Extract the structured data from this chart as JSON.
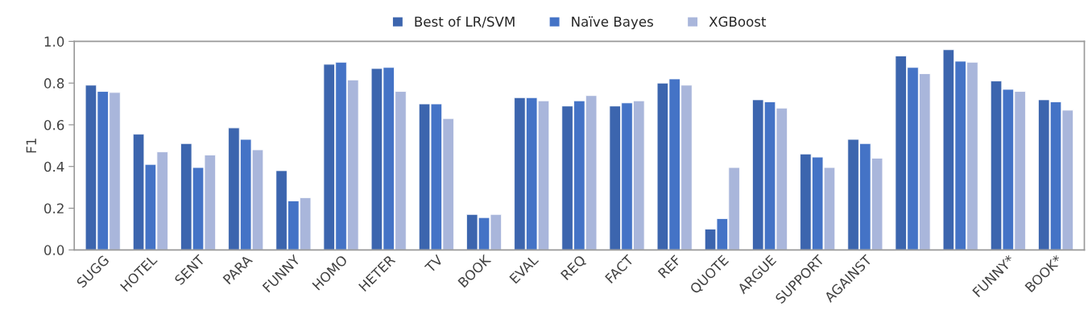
{
  "chart_data": {
    "type": "bar",
    "ylabel": "F1",
    "categories": [
      "SUGG",
      "HOTEL",
      "SENT",
      "PARA",
      "FUNNY",
      "HOMO",
      "HETER",
      "TV",
      "BOOK",
      "EVAL",
      "REQ",
      "FACT",
      "REF",
      "QUOTE",
      "ARGUE",
      "SUPPORT",
      "AGAINST",
      null,
      null,
      "FUNNY*",
      "BOOK*"
    ],
    "series": [
      {
        "name": "Best of LR/SVM",
        "color": "#3c65ae",
        "values": [
          0.79,
          0.555,
          0.51,
          0.585,
          0.38,
          0.89,
          0.87,
          0.7,
          0.17,
          0.73,
          0.69,
          0.69,
          0.8,
          0.1,
          0.72,
          0.46,
          0.53,
          0.93,
          0.96,
          0.81,
          0.72
        ]
      },
      {
        "name": "Naïve Bayes",
        "color": "#4473c6",
        "values": [
          0.76,
          0.41,
          0.395,
          0.53,
          0.235,
          0.9,
          0.875,
          0.7,
          0.155,
          0.73,
          0.715,
          0.705,
          0.82,
          0.15,
          0.71,
          0.445,
          0.51,
          0.875,
          0.905,
          0.77,
          0.71
        ]
      },
      {
        "name": "XGBoost",
        "color": "#a9b6db",
        "values": [
          0.755,
          0.47,
          0.455,
          0.48,
          0.25,
          0.815,
          0.76,
          0.63,
          0.17,
          0.715,
          0.74,
          0.715,
          0.79,
          0.395,
          0.68,
          0.395,
          0.44,
          0.845,
          0.9,
          0.76,
          0.67
        ]
      }
    ],
    "ylim": [
      0,
      1.0
    ],
    "yticks": [
      {
        "value": 0,
        "label": "0.0"
      },
      {
        "value": 0.2,
        "label": "0.2"
      },
      {
        "value": 0.4,
        "label": "0.4"
      },
      {
        "value": 0.6,
        "label": "0.6"
      },
      {
        "value": 0.8,
        "label": "0.8"
      },
      {
        "value": 1.0,
        "label": "1.0"
      }
    ],
    "grid": false,
    "legend": "top"
  }
}
